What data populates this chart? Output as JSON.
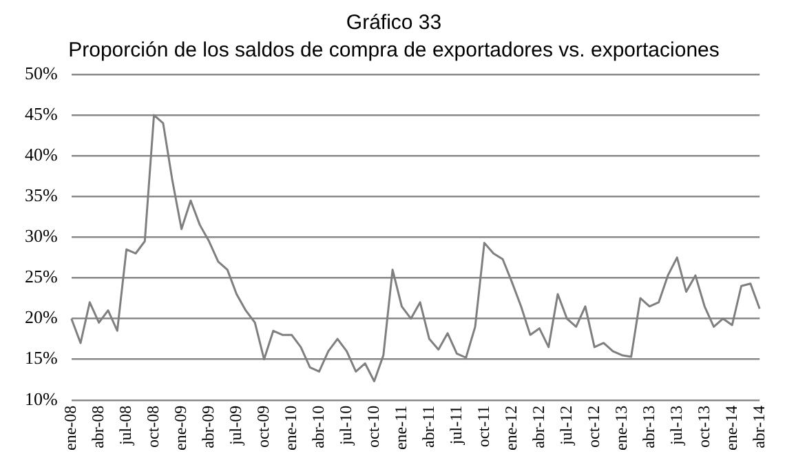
{
  "chart_data": {
    "type": "line",
    "title": "Gráfico 33",
    "subtitle": "Proporción de los saldos de compra de exportadores vs. exportaciones",
    "categories": [
      "ene-08",
      null,
      null,
      "abr-08",
      null,
      null,
      "jul-08",
      null,
      null,
      "oct-08",
      null,
      null,
      "ene-09",
      null,
      null,
      "abr-09",
      null,
      null,
      "jul-09",
      null,
      null,
      "oct-09",
      null,
      null,
      "ene-10",
      null,
      null,
      "abr-10",
      null,
      null,
      "jul-10",
      null,
      null,
      "oct-10",
      null,
      null,
      "ene-11",
      null,
      null,
      "abr-11",
      null,
      null,
      "jul-11",
      null,
      null,
      "oct-11",
      null,
      null,
      "ene-12",
      null,
      null,
      "abr-12",
      null,
      null,
      "jul-12",
      null,
      null,
      "oct-12",
      null,
      null,
      "ene-13",
      null,
      null,
      "abr-13",
      null,
      null,
      "jul-13",
      null,
      null,
      "oct-13",
      null,
      null,
      "ene-14",
      null,
      null,
      "abr-14"
    ],
    "series": [
      {
        "color": "#7f7f7f",
        "values": [
          20,
          17,
          22,
          19.5,
          21,
          18.5,
          28.5,
          28,
          29.5,
          45,
          44,
          37,
          31,
          34.5,
          31.5,
          29.5,
          27,
          26,
          23,
          21,
          19.5,
          15,
          18.5,
          18,
          18,
          16.5,
          14,
          13.5,
          16,
          17.5,
          16,
          13.5,
          14.5,
          12.3,
          15.5,
          26,
          21.5,
          20,
          22,
          17.5,
          16.2,
          18.2,
          15.7,
          15.2,
          19,
          29.3,
          28,
          27.3,
          24.5,
          21.5,
          18,
          18.8,
          16.5,
          23,
          20,
          19,
          21.5,
          16.5,
          17,
          16,
          15.5,
          15.3,
          22.5,
          21.5,
          22,
          25.3,
          27.5,
          23.3,
          25.3,
          21.5,
          19,
          20,
          19.2,
          24,
          24.3,
          21.2
        ]
      }
    ],
    "ylim": [
      10,
      50
    ],
    "yticks": [
      {
        "value": 10,
        "label": "10%"
      },
      {
        "value": 15,
        "label": "15%"
      },
      {
        "value": 20,
        "label": "20%"
      },
      {
        "value": 25,
        "label": "25%"
      },
      {
        "value": 30,
        "label": "30%"
      },
      {
        "value": 35,
        "label": "35%"
      },
      {
        "value": 40,
        "label": "40%"
      },
      {
        "value": 45,
        "label": "45%"
      },
      {
        "value": 50,
        "label": "50%"
      }
    ],
    "grid": "y",
    "legend": false,
    "marker": "none",
    "line_style": "solid"
  }
}
